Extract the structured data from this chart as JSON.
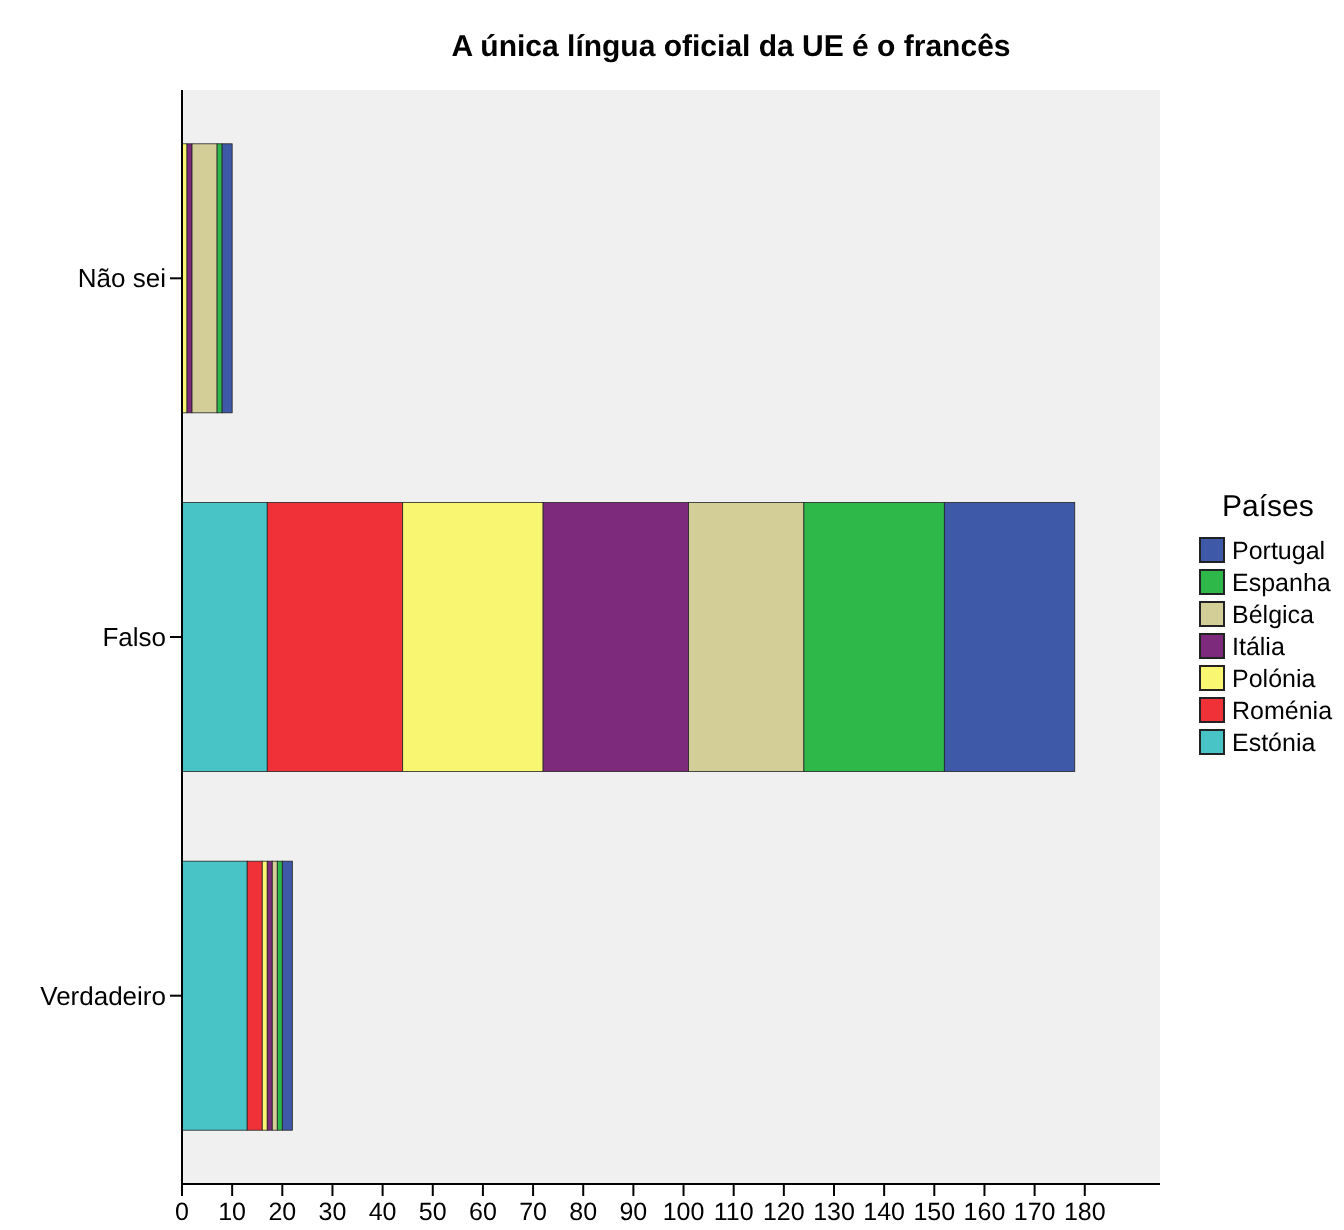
{
  "chart_data": {
    "type": "bar",
    "orientation": "horizontal",
    "stacked": true,
    "title": "A única língua oficial da UE é o francês",
    "legend_title": "Países",
    "legend": "right",
    "categories": [
      "Não sei",
      "Falso",
      "Verdadeiro"
    ],
    "xlim": [
      0,
      195
    ],
    "xticks": [
      0,
      10,
      20,
      30,
      40,
      50,
      60,
      70,
      80,
      90,
      100,
      110,
      120,
      130,
      140,
      150,
      160,
      170,
      180
    ],
    "series": [
      {
        "name": "Estónia",
        "color": "#48c3c6",
        "values": [
          0,
          17,
          13
        ]
      },
      {
        "name": "Roménia",
        "color": "#f03238",
        "values": [
          0,
          27,
          3
        ]
      },
      {
        "name": "Polónia",
        "color": "#f9f672",
        "values": [
          1,
          28,
          1
        ]
      },
      {
        "name": "Itália",
        "color": "#7d2a7d",
        "values": [
          1,
          29,
          1
        ]
      },
      {
        "name": "Bélgica",
        "color": "#d3cd97",
        "values": [
          5,
          23,
          1
        ]
      },
      {
        "name": "Espanha",
        "color": "#2eb84a",
        "values": [
          1,
          28,
          1
        ]
      },
      {
        "name": "Portugal",
        "color": "#3e59a8",
        "values": [
          2,
          26,
          2
        ]
      }
    ]
  }
}
